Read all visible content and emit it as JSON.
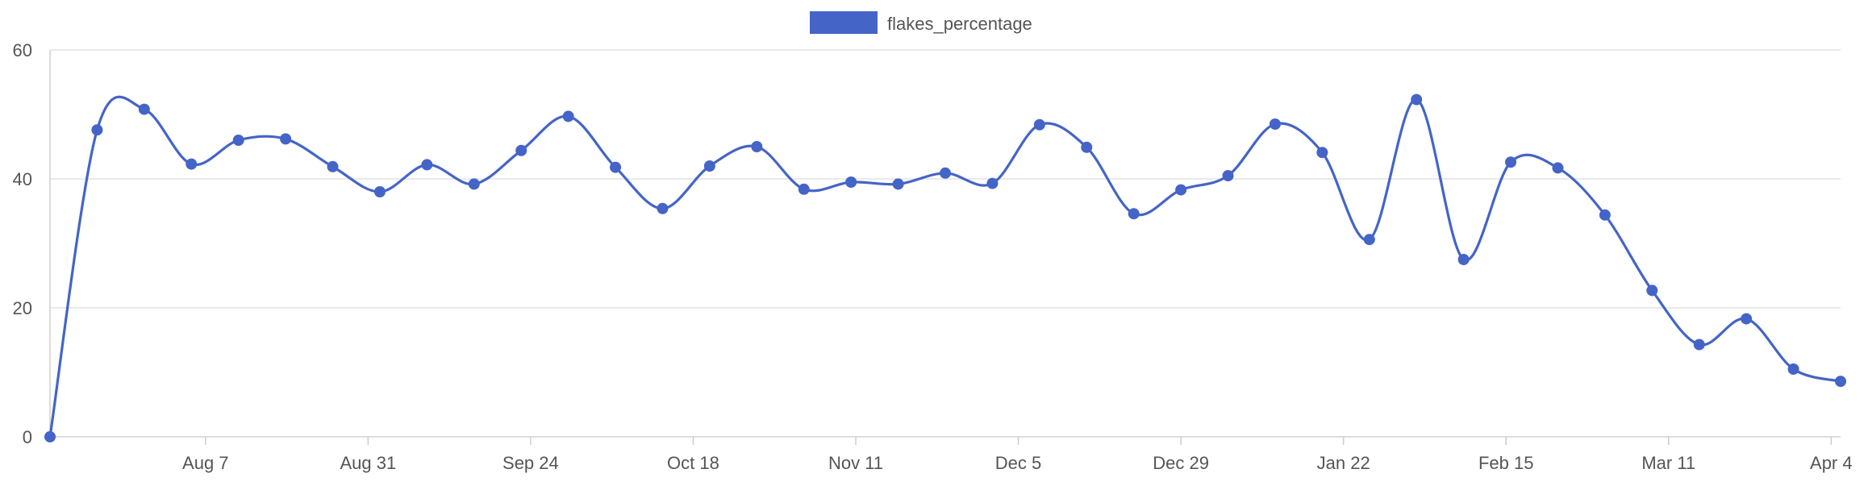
{
  "chart_data": {
    "type": "line",
    "legend": {
      "placement": "top-center",
      "entries": [
        "flakes_percentage"
      ]
    },
    "grid": true,
    "curve": "smooth",
    "ylim": [
      0,
      60
    ],
    "y_ticks": [
      "0",
      "20",
      "40",
      "60"
    ],
    "x_ticks": [
      "Aug 7",
      "Aug 31",
      "Sep 24",
      "Oct 18",
      "Nov 11",
      "Dec 5",
      "Dec 29",
      "Jan 22",
      "Feb 15",
      "Mar 11",
      "Apr 4"
    ],
    "series": [
      {
        "name": "flakes_percentage",
        "color": "#4464c7",
        "values": [
          0,
          47.6,
          50.8,
          42.3,
          46.0,
          46.2,
          41.9,
          38.0,
          42.2,
          39.2,
          44.4,
          49.7,
          41.8,
          35.4,
          42.0,
          45.0,
          38.4,
          39.5,
          39.2,
          40.9,
          39.3,
          48.4,
          44.9,
          34.6,
          38.3,
          40.5,
          48.5,
          44.1,
          30.6,
          52.3,
          27.5,
          42.6,
          41.7,
          34.4,
          22.7,
          14.3,
          18.3,
          10.5,
          8.6
        ]
      }
    ]
  }
}
